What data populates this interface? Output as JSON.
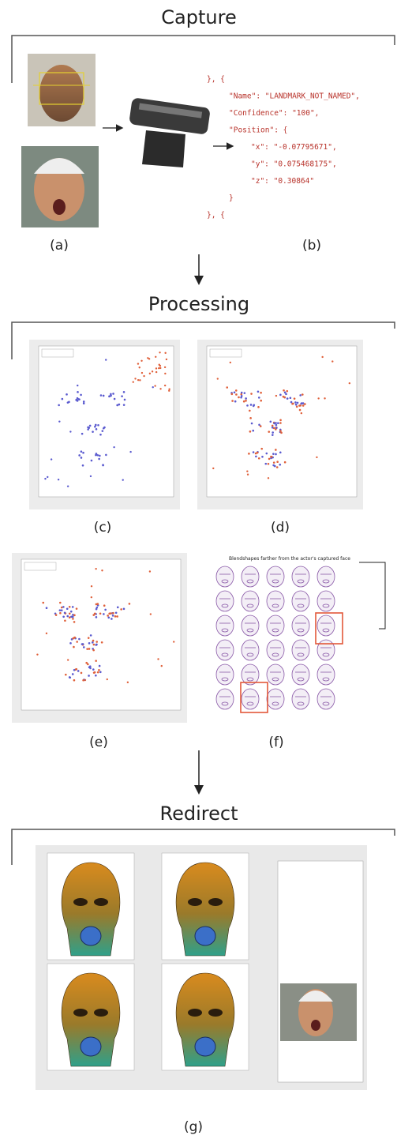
{
  "capture": {
    "title": "Capture",
    "labels": [
      "(a)",
      "(b)"
    ],
    "code": [
      "}, {",
      "\"Name\": \"LANDMARK_NOT_NAMED\",",
      "\"Confidence\": \"100\",",
      "\"Position\": {",
      "\"x\": \"-0.07795671\",",
      "\"y\": \"0.075468175\",",
      "\"z\": \"0.30864\"",
      "}",
      "}, {"
    ]
  },
  "processing": {
    "title": "Processing",
    "labels": [
      "(c)",
      "(d)",
      "(e)",
      "(f)"
    ],
    "annotation": "Blendshapes farther from the actor's captured face"
  },
  "redirect": {
    "title": "Redirect",
    "labels": [
      "(g)"
    ]
  }
}
